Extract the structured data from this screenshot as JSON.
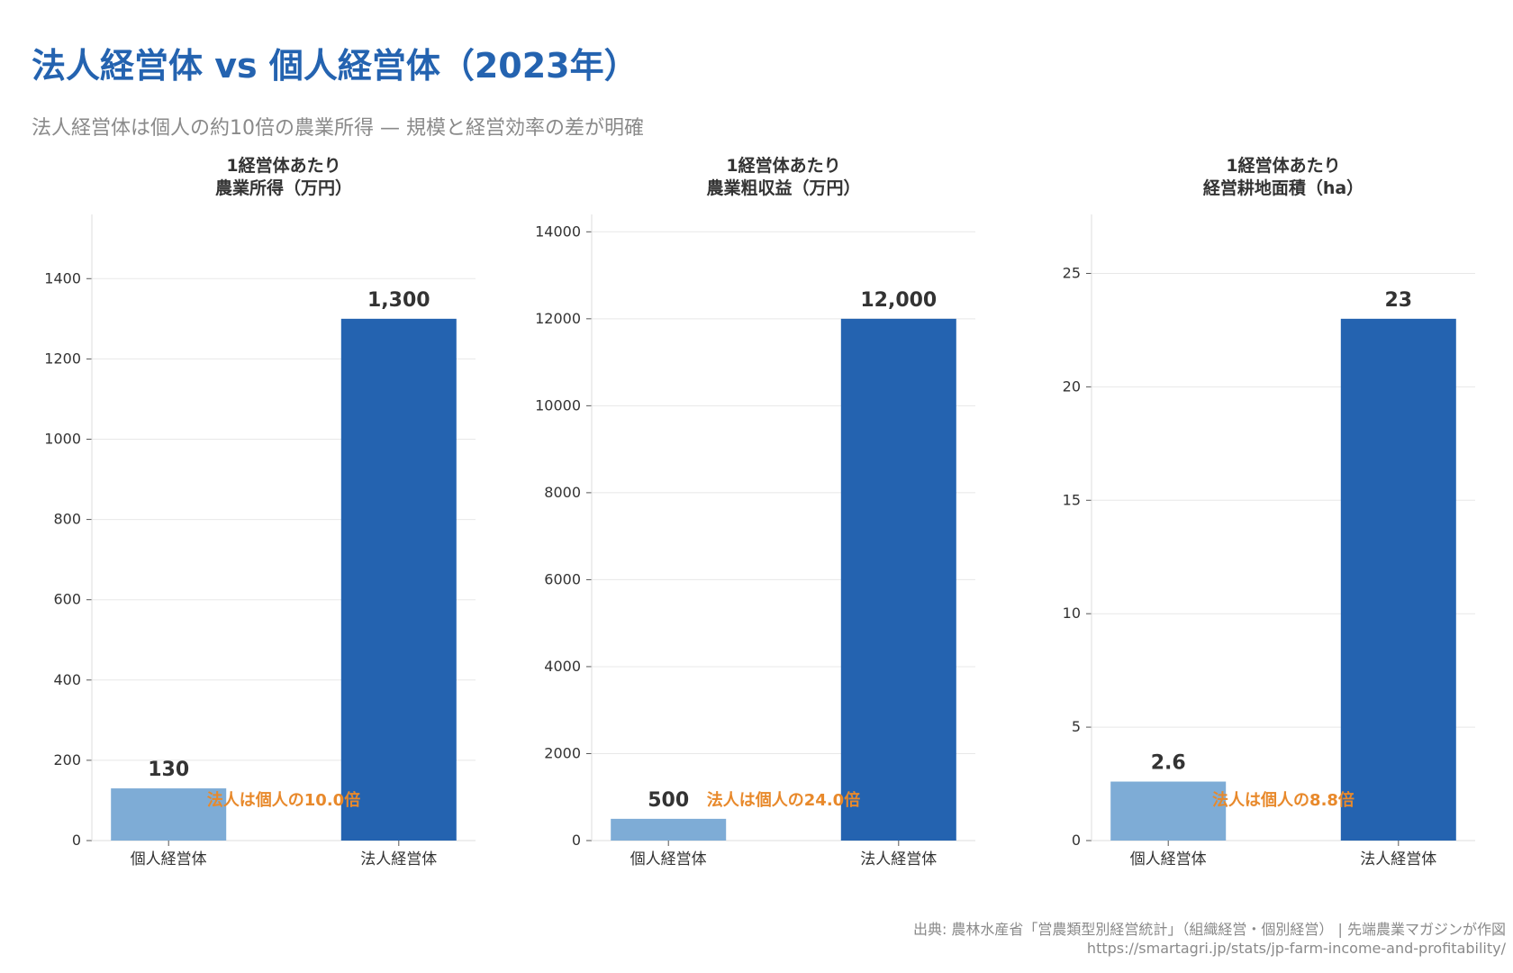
{
  "title": "法人経営体 vs 個人経営体（2023年）",
  "subtitle": "法人経営体は個人の約10倍の農業所得 — 規模と経営効率の差が明確",
  "source": "出典: 農林水産省「営農類型別経営統計」（組織経営・個別経営） | 先端農業マガジンが作図",
  "url": "https://smartagri.jp/stats/jp-farm-income-and-profitability/",
  "colors": {
    "individual": "#7eacd6",
    "corporate": "#2463b0",
    "annotation": "#e8892b",
    "title": "#2463b0"
  },
  "chart_data": [
    {
      "type": "bar",
      "title": [
        "1経営体あたり",
        "農業所得（万円）"
      ],
      "categories": [
        "個人経営体",
        "法人経営体"
      ],
      "values": [
        130,
        1300
      ],
      "value_labels": [
        "130",
        "1,300"
      ],
      "ylim": [
        0,
        1560
      ],
      "yticks": [
        0,
        200,
        400,
        600,
        800,
        1000,
        1200,
        1400
      ],
      "annotation": "法人は個人の10.0倍",
      "grid": true
    },
    {
      "type": "bar",
      "title": [
        "1経営体あたり",
        "農業粗収益（万円）"
      ],
      "categories": [
        "個人経営体",
        "法人経営体"
      ],
      "values": [
        500,
        12000
      ],
      "value_labels": [
        "500",
        "12,000"
      ],
      "ylim": [
        0,
        14400
      ],
      "yticks": [
        0,
        2000,
        4000,
        6000,
        8000,
        10000,
        12000,
        14000
      ],
      "annotation": "法人は個人の24.0倍",
      "grid": true
    },
    {
      "type": "bar",
      "title": [
        "1経営体あたり",
        "経営耕地面積（ha）"
      ],
      "categories": [
        "個人経営体",
        "法人経営体"
      ],
      "values": [
        2.6,
        23
      ],
      "value_labels": [
        "2.6",
        "23"
      ],
      "ylim": [
        0,
        27.6
      ],
      "yticks": [
        0,
        5,
        10,
        15,
        20,
        25
      ],
      "annotation": "法人は個人の8.8倍",
      "grid": true
    }
  ]
}
